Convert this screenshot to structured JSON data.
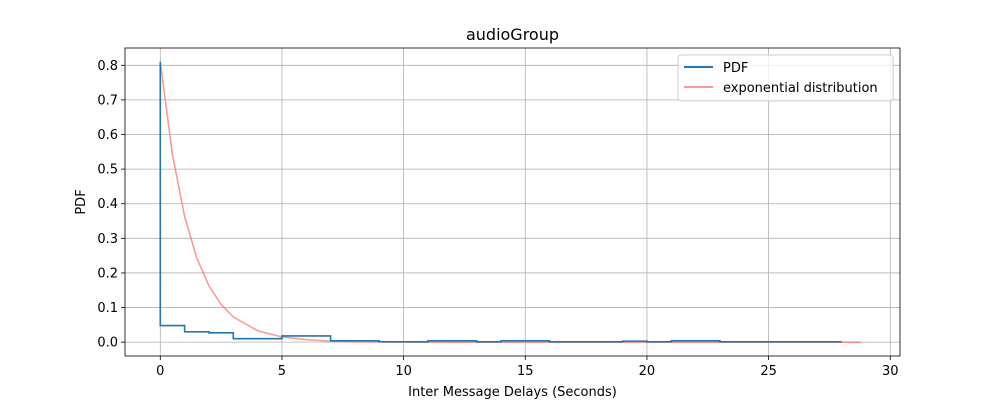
{
  "chart_data": {
    "type": "line",
    "title": "audioGroup",
    "xlabel": "Inter Message Delays (Seconds)",
    "ylabel": "PDF",
    "xlim": [
      -1.45,
      30.4
    ],
    "ylim": [
      -0.04,
      0.85
    ],
    "xticks": [
      0,
      5,
      10,
      15,
      20,
      25,
      30
    ],
    "yticks": [
      0.0,
      0.1,
      0.2,
      0.3,
      0.4,
      0.5,
      0.6,
      0.7,
      0.8
    ],
    "xtick_labels": [
      "0",
      "5",
      "10",
      "15",
      "20",
      "25",
      "30"
    ],
    "ytick_labels": [
      "0.0",
      "0.1",
      "0.2",
      "0.3",
      "0.4",
      "0.5",
      "0.6",
      "0.7",
      "0.8"
    ],
    "grid": true,
    "legend_position": "top-right",
    "series": [
      {
        "name": "PDF",
        "style": "step",
        "color": "#1f77b4",
        "x": [
          0,
          0,
          1,
          2,
          3,
          5,
          7,
          9,
          11,
          13,
          14,
          16,
          19,
          20,
          21,
          23,
          28
        ],
        "y": [
          0.81,
          0.048,
          0.03,
          0.027,
          0.01,
          0.018,
          0.004,
          0.001,
          0.004,
          0.001,
          0.004,
          0.001,
          0.003,
          0.001,
          0.004,
          0.001,
          0.001
        ]
      },
      {
        "name": "exponential distribution",
        "style": "line",
        "color": "#ff7f7f",
        "x": [
          0,
          0.5,
          1,
          1.5,
          2,
          2.5,
          3,
          4,
          5,
          6,
          7,
          8,
          10,
          12,
          15,
          20,
          25,
          28.8
        ],
        "y": [
          0.81,
          0.542,
          0.363,
          0.243,
          0.163,
          0.109,
          0.073,
          0.033,
          0.015,
          0.007,
          0.003,
          0.001,
          0.0003,
          0.0,
          0.0,
          0.0,
          0.0,
          0.0
        ]
      }
    ]
  }
}
